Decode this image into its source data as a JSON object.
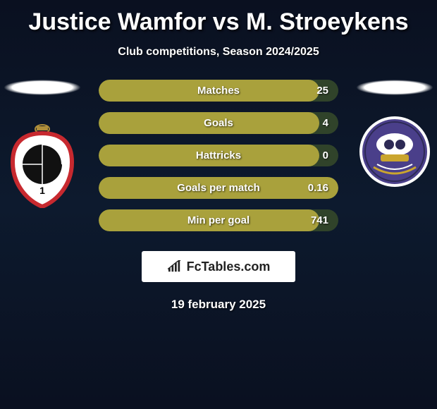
{
  "title": "Justice Wamfor vs M. Stroeykens",
  "subtitle": "Club competitions, Season 2024/2025",
  "date": "19 february 2025",
  "branding": {
    "text": "FcTables.com"
  },
  "colors": {
    "bar_fill": "#a9a13c",
    "bar_bg": "#30432a",
    "crest_left_stroke": "#c7292f",
    "crest_left_fill": "#ffffff",
    "crest_right_fill": "#4a3f8a",
    "crest_right_stroke": "#2d2a55",
    "gold": "#caa52e"
  },
  "bars": [
    {
      "label": "Matches",
      "value": "25",
      "fill_pct": 92
    },
    {
      "label": "Goals",
      "value": "4",
      "fill_pct": 92
    },
    {
      "label": "Hattricks",
      "value": "0",
      "fill_pct": 92
    },
    {
      "label": "Goals per match",
      "value": "0.16",
      "fill_pct": 100
    },
    {
      "label": "Min per goal",
      "value": "741",
      "fill_pct": 92
    }
  ]
}
